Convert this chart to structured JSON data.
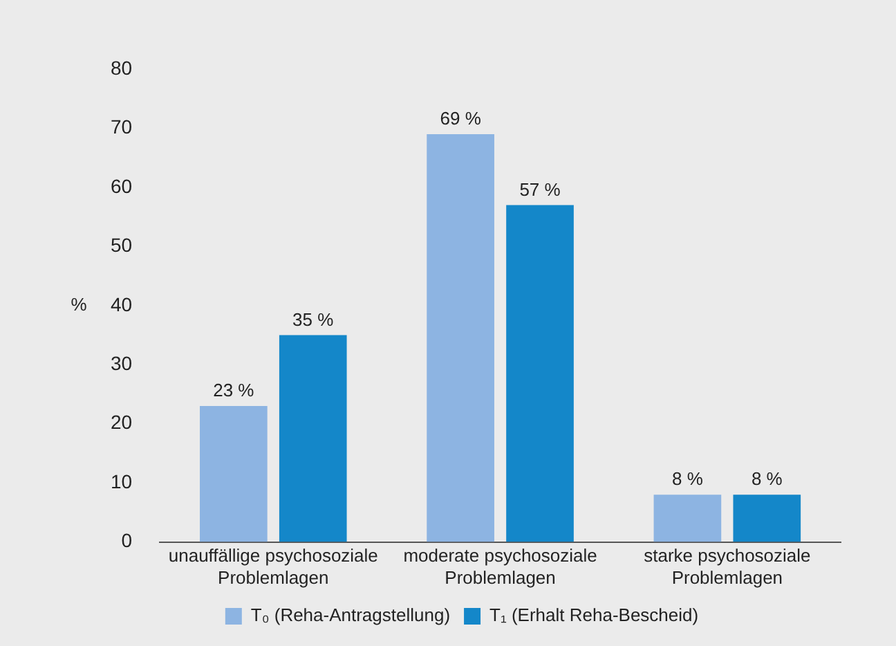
{
  "chart_data": {
    "type": "bar",
    "ylabel": "%",
    "categories": [
      "unauffällige psychosoziale Problemlagen",
      "moderate psychosoziale Problemlagen",
      "starke psychosoziale Problemlagen"
    ],
    "series": [
      {
        "name": "T₀ (Reha-Antragstellung)",
        "color": "#8db4e2",
        "values": [
          23,
          69,
          8
        ],
        "value_labels": [
          "23 %",
          "69 %",
          "8 %"
        ]
      },
      {
        "name": "T₁ (Erhalt Reha-Bescheid)",
        "color": "#1487c9",
        "values": [
          35,
          57,
          8
        ],
        "value_labels": [
          "35 %",
          "57 %",
          "8 %"
        ]
      }
    ],
    "ylim": [
      0,
      80
    ],
    "yticks": [
      0,
      10,
      20,
      30,
      40,
      50,
      60,
      70,
      80
    ],
    "grid": false,
    "legend": "bottom"
  }
}
